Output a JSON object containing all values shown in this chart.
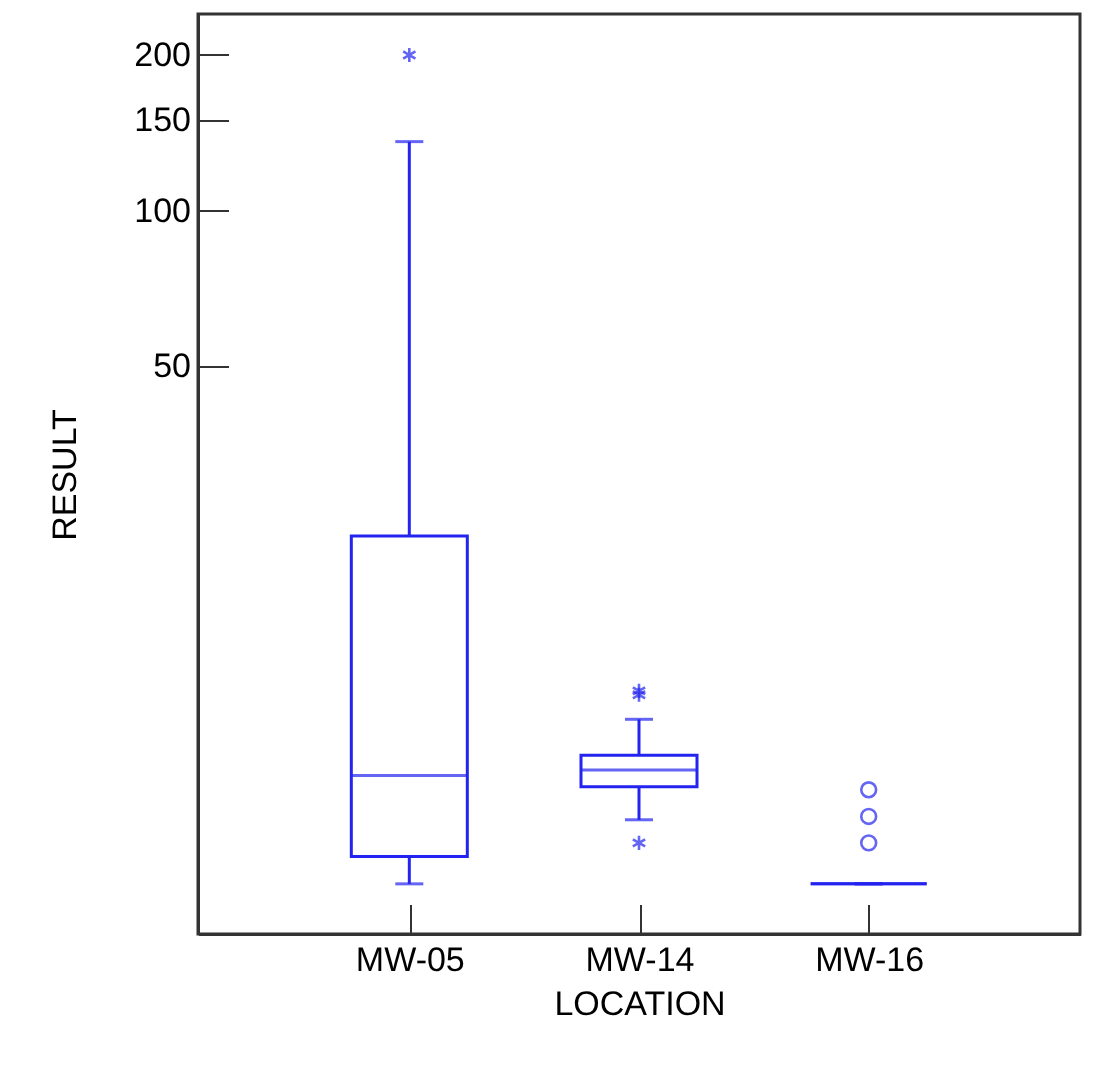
{
  "chart_data": {
    "type": "box",
    "xlabel": "LOCATION",
    "ylabel": "RESULT",
    "categories": [
      "MW-05",
      "MW-14",
      "MW-16"
    ],
    "log": true,
    "ylim": [
      4,
      240
    ],
    "yticks": [
      50,
      100,
      150,
      200
    ],
    "grid": false,
    "marker": "star",
    "series": [
      {
        "color": "#2424f0",
        "boxes": [
          {
            "low": 5.0,
            "q1": 5.65,
            "median": 8.1,
            "q3": 23.5,
            "high": 136,
            "outliers": [
              200
            ]
          },
          {
            "low": 6.65,
            "q1": 7.7,
            "median": 8.3,
            "q3": 8.86,
            "high": 10.4,
            "outliers": [
              6.0,
              11.6,
              11.8
            ]
          },
          {
            "low": 5.0,
            "q1": 5.0,
            "median": 5.0,
            "q3": 5.0,
            "high": 5.0
          }
        ]
      },
      {
        "type": "scatter",
        "marker": "circle",
        "color": "#2424f0",
        "x": [
          "MW-16",
          "MW-16",
          "MW-16"
        ],
        "values": [
          6.0,
          6.75,
          7.6
        ]
      }
    ]
  }
}
